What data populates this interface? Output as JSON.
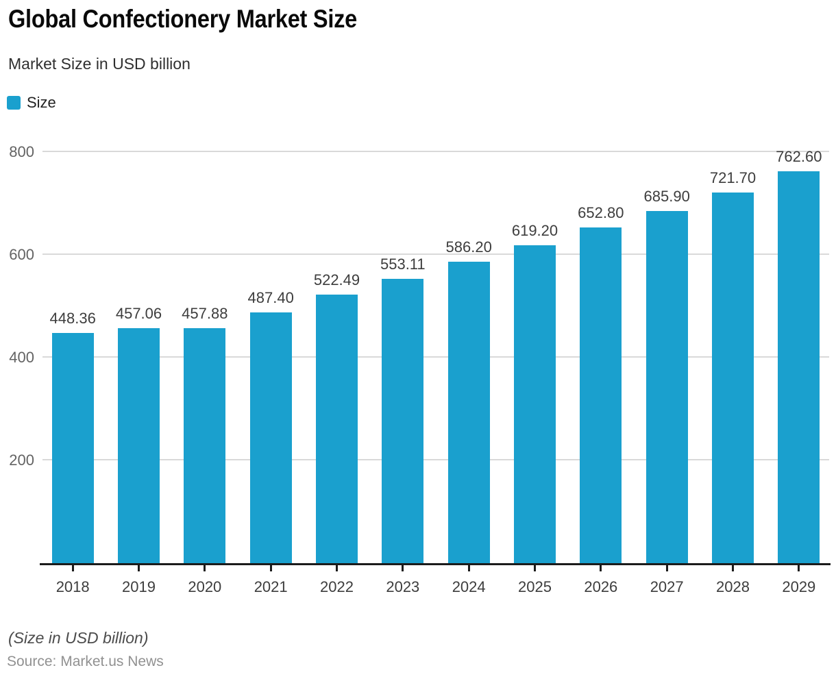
{
  "header": {
    "title": "Global Confectionery Market Size",
    "subtitle": "Market Size in USD billion"
  },
  "legend": {
    "items": [
      {
        "label": "Size"
      }
    ]
  },
  "chart_data": {
    "type": "bar",
    "title": "Global Confectionery Market Size",
    "subtitle": "Market Size in USD billion",
    "series_name": "Size",
    "categories": [
      "2018",
      "2019",
      "2020",
      "2021",
      "2022",
      "2023",
      "2024",
      "2025",
      "2026",
      "2027",
      "2028",
      "2029"
    ],
    "values": [
      448.36,
      457.06,
      457.88,
      487.4,
      522.49,
      553.11,
      586.2,
      619.2,
      652.8,
      685.9,
      721.7,
      762.6
    ],
    "value_labels": [
      "448.36",
      "457.06",
      "457.88",
      "487.40",
      "522.49",
      "553.11",
      "586.20",
      "619.20",
      "652.80",
      "685.90",
      "721.70",
      "762.60"
    ],
    "xlabel": "",
    "ylabel": "",
    "ylim": [
      0,
      800
    ],
    "yticks": [
      200,
      400,
      600,
      800
    ],
    "grid": true,
    "legend_position": "top-left",
    "bar_color": "#1aa0ce"
  },
  "footer": {
    "note": "(Size in USD billion)",
    "source": "Source: Market.us News"
  }
}
